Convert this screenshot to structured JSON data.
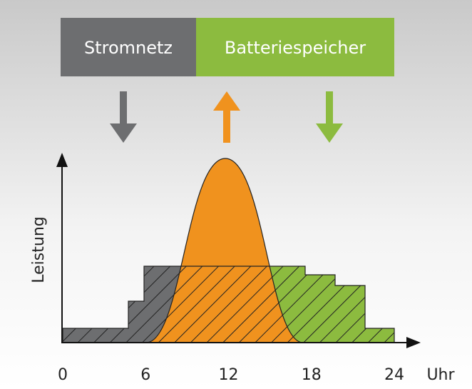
{
  "banner": {
    "left": "Stromnetz",
    "right": "Batteriespeicher"
  },
  "y_axis": {
    "label": "Leistung"
  },
  "x_axis": {
    "ticks": [
      0,
      6,
      12,
      18,
      24
    ],
    "unit": "Uhr"
  }
}
